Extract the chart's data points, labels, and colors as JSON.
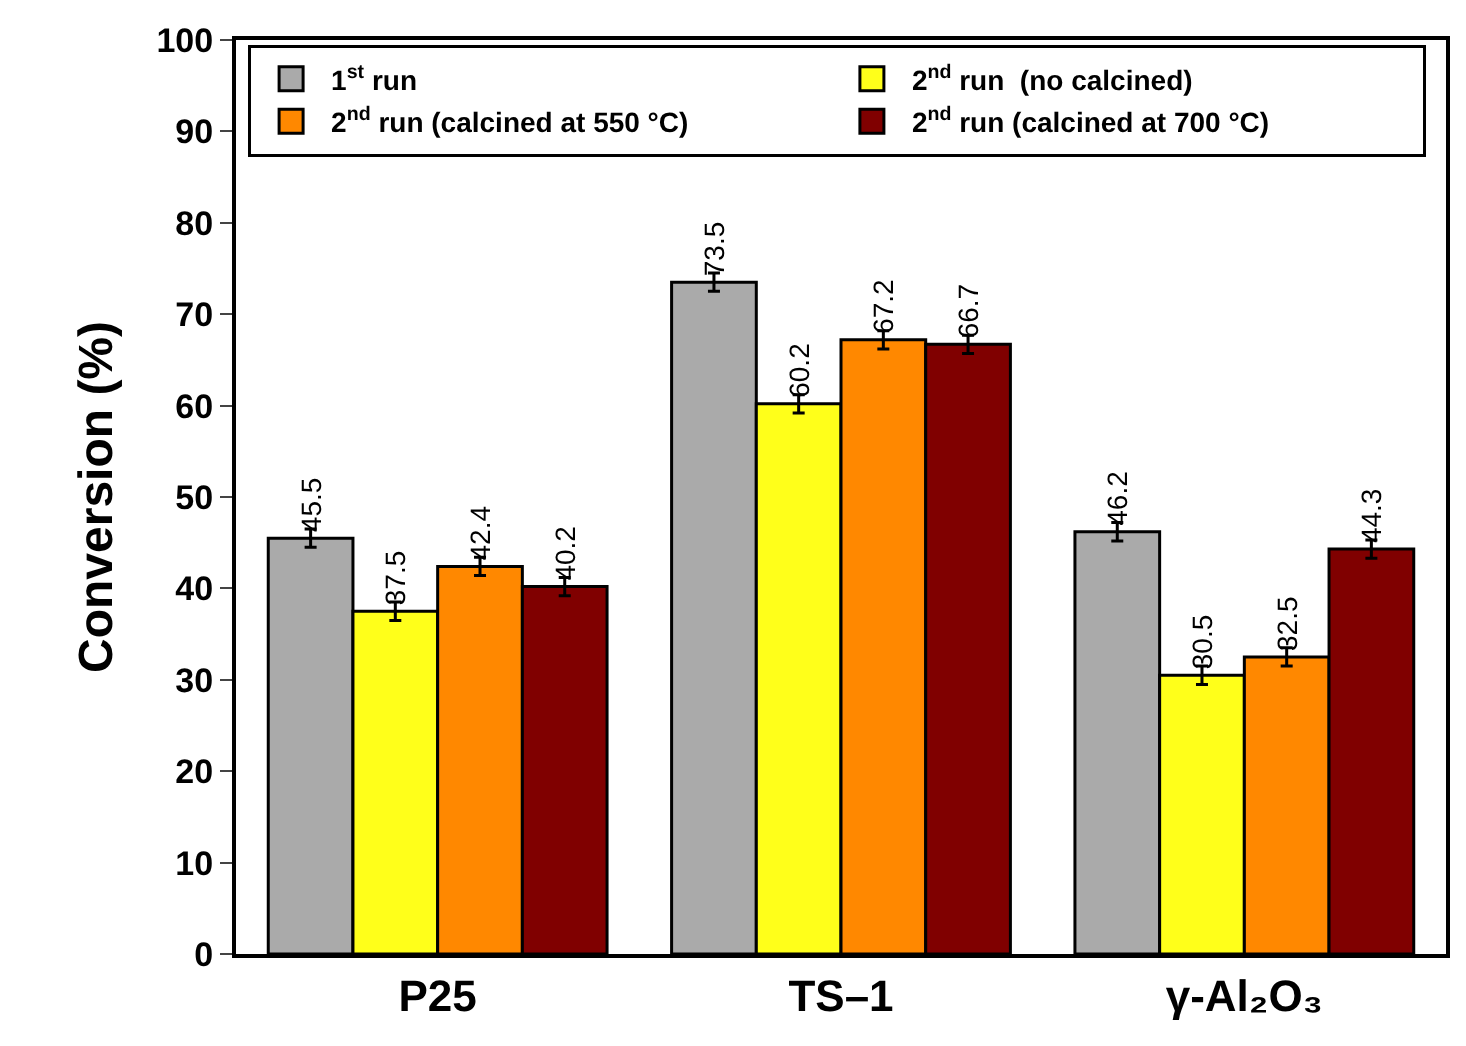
{
  "chart_data": {
    "type": "bar",
    "ylabel": "Conversion (%)",
    "categories": [
      "P25",
      "TS–1",
      "γ-Al₂O₃"
    ],
    "series": [
      {
        "name": "1$^{st}$ run",
        "color": "#aaaaaa",
        "values": [
          45.5,
          73.5,
          46.2
        ],
        "errors": [
          1,
          1,
          1
        ]
      },
      {
        "name": "2$^{nd}$ run  (no calcined)",
        "color": "#ffff1a",
        "values": [
          37.5,
          60.2,
          30.5
        ],
        "errors": [
          1,
          1,
          1
        ]
      },
      {
        "name": "2$^{nd}$ run (calcined at 550 °C)",
        "color": "#ff8800",
        "values": [
          42.4,
          67.2,
          32.5
        ],
        "errors": [
          1,
          1,
          1
        ]
      },
      {
        "name": "2$^{nd}$ run (calcined at 700 °C)",
        "color": "#800000",
        "values": [
          40.2,
          66.7,
          44.3
        ],
        "errors": [
          1,
          1,
          1
        ]
      }
    ],
    "ylim": [
      0,
      100
    ],
    "yticks": [
      0,
      10,
      20,
      30,
      40,
      50,
      60,
      70,
      80,
      90,
      100
    ],
    "data_labels": true,
    "legend": "top"
  }
}
